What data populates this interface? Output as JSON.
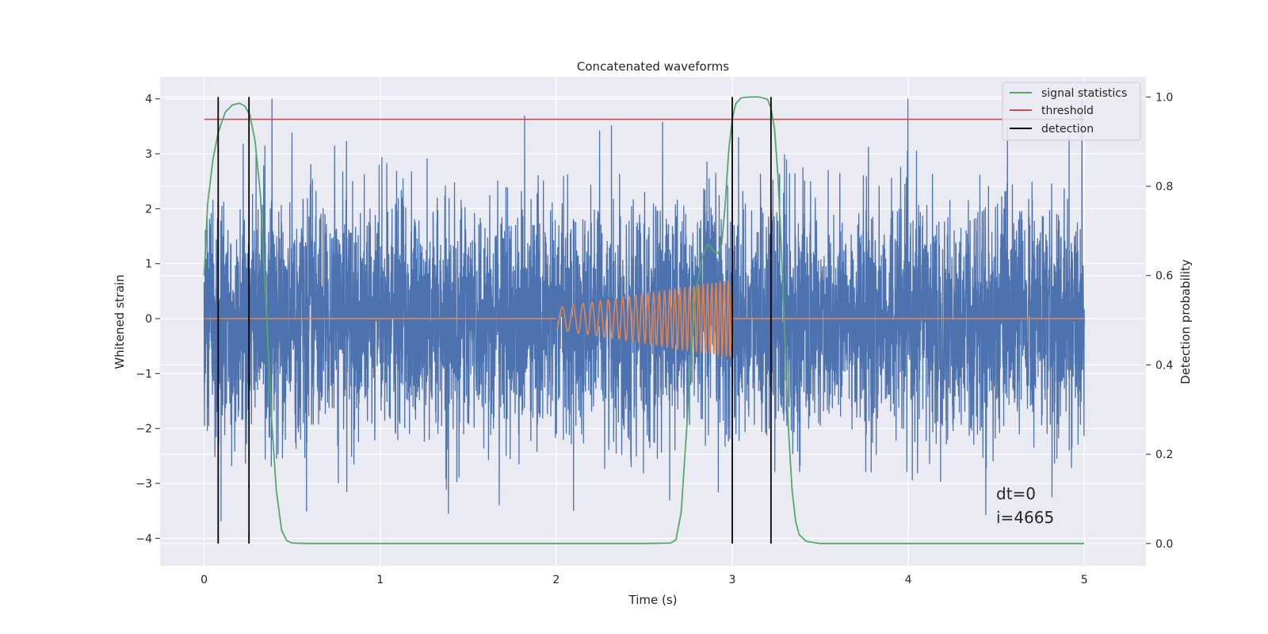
{
  "chart_data": {
    "type": "line",
    "title": "Concatenated waveforms",
    "xlabel": "Time (s)",
    "ylabel": "Whitened strain",
    "y2label": "Detection probability",
    "xlim": [
      -0.25,
      5.35
    ],
    "ylim": [
      -4.5,
      4.4
    ],
    "y2lim": [
      -0.05,
      1.045
    ],
    "xticks": [
      0,
      1,
      2,
      3,
      4,
      5
    ],
    "yticks": [
      -4,
      -3,
      -2,
      -1,
      0,
      1,
      2,
      3,
      4
    ],
    "y2ticks": [
      0.0,
      0.2,
      0.4,
      0.6,
      0.8,
      1.0
    ],
    "xtick_labels": [
      "0",
      "1",
      "2",
      "3",
      "4",
      "5"
    ],
    "ytick_labels": [
      "−4",
      "−3",
      "−2",
      "−1",
      "0",
      "1",
      "2",
      "3",
      "4"
    ],
    "y2tick_labels": [
      "0.0",
      "0.2",
      "0.4",
      "0.6",
      "0.8",
      "1.0"
    ],
    "grid": true,
    "legend_position": "top-right",
    "legend": [
      {
        "label": "signal statistics",
        "color": "#55a868"
      },
      {
        "label": "threshold",
        "color": "#c44e52"
      },
      {
        "label": "detection",
        "color": "#000000"
      }
    ],
    "colors": {
      "strain": "#4c72b0",
      "injected_waveform": "#dd8452",
      "signal_statistics": "#55a868",
      "threshold": "#c44e52",
      "detection": "#000000",
      "plot_background": "#eaeaf2",
      "grid": "#ffffff"
    },
    "strain": {
      "x_range": [
        0,
        5
      ],
      "amplitude_range": [
        -4.1,
        4.0
      ]
    },
    "injected_waveform": {
      "x_start": 2.0,
      "x_end": 3.0,
      "amplitude_start": 0.2,
      "amplitude_end": 0.7,
      "frequency_start": 14,
      "frequency_end": 45
    },
    "threshold": {
      "x": [
        0,
        5
      ],
      "y": 0.95
    },
    "signal_statistics": {
      "points": [
        [
          0.0,
          0.6
        ],
        [
          0.02,
          0.76
        ],
        [
          0.05,
          0.86
        ],
        [
          0.08,
          0.92
        ],
        [
          0.12,
          0.966
        ],
        [
          0.16,
          0.982
        ],
        [
          0.2,
          0.986
        ],
        [
          0.23,
          0.98
        ],
        [
          0.26,
          0.96
        ],
        [
          0.29,
          0.9
        ],
        [
          0.32,
          0.78
        ],
        [
          0.35,
          0.55
        ],
        [
          0.38,
          0.3
        ],
        [
          0.41,
          0.12
        ],
        [
          0.44,
          0.03
        ],
        [
          0.47,
          0.006
        ],
        [
          0.5,
          0.001
        ],
        [
          0.6,
          0.0
        ],
        [
          1.0,
          0.0
        ],
        [
          1.5,
          0.0
        ],
        [
          2.0,
          0.0
        ],
        [
          2.5,
          0.0
        ],
        [
          2.65,
          0.001
        ],
        [
          2.68,
          0.008
        ],
        [
          2.71,
          0.07
        ],
        [
          2.74,
          0.25
        ],
        [
          2.77,
          0.45
        ],
        [
          2.8,
          0.58
        ],
        [
          2.83,
          0.64
        ],
        [
          2.86,
          0.67
        ],
        [
          2.88,
          0.663
        ],
        [
          2.9,
          0.652
        ],
        [
          2.92,
          0.65
        ],
        [
          2.94,
          0.67
        ],
        [
          2.96,
          0.76
        ],
        [
          2.98,
          0.88
        ],
        [
          3.0,
          0.95
        ],
        [
          3.02,
          0.985
        ],
        [
          3.05,
          0.998
        ],
        [
          3.1,
          1.0
        ],
        [
          3.15,
          1.0
        ],
        [
          3.2,
          0.995
        ],
        [
          3.22,
          0.975
        ],
        [
          3.24,
          0.93
        ],
        [
          3.26,
          0.82
        ],
        [
          3.28,
          0.65
        ],
        [
          3.3,
          0.45
        ],
        [
          3.32,
          0.25
        ],
        [
          3.34,
          0.12
        ],
        [
          3.36,
          0.05
        ],
        [
          3.38,
          0.02
        ],
        [
          3.42,
          0.005
        ],
        [
          3.5,
          0.0
        ],
        [
          4.0,
          0.0
        ],
        [
          4.5,
          0.0
        ],
        [
          5.0,
          0.0
        ]
      ]
    },
    "detections": [
      0.08,
      0.255,
      3.0,
      3.22
    ],
    "annotations": [
      "dt=0",
      "i=4665"
    ]
  }
}
